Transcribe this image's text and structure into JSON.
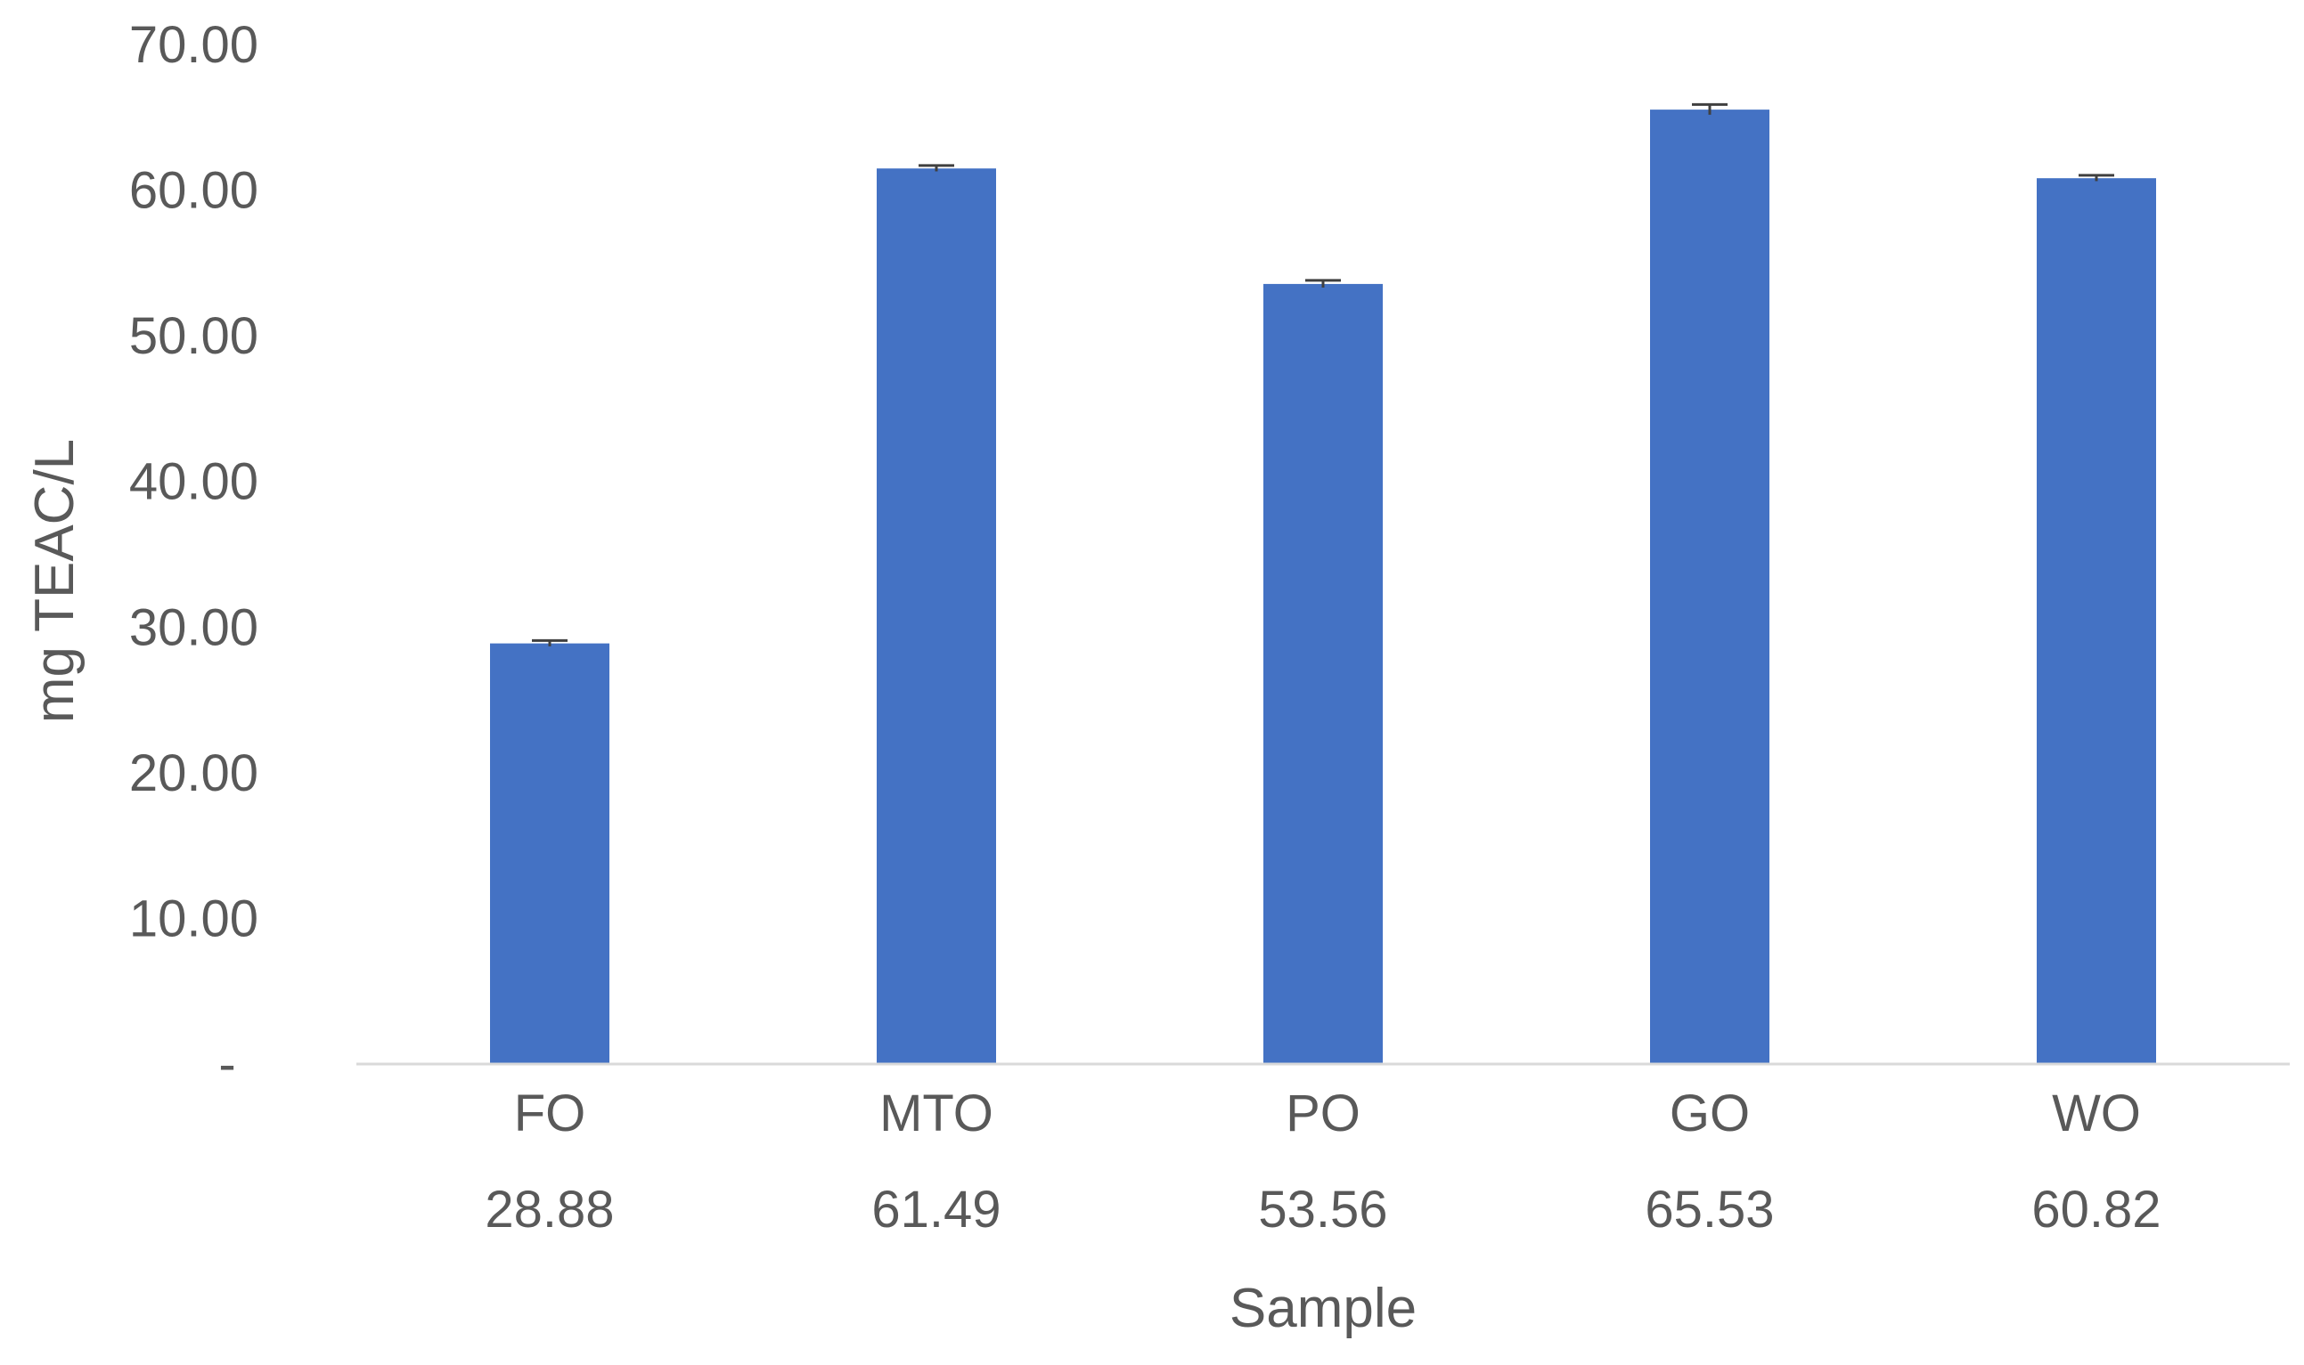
{
  "chart_data": {
    "type": "bar",
    "categories": [
      "FO",
      "MTO",
      "PO",
      "GO",
      "WO"
    ],
    "values": [
      28.88,
      61.49,
      53.56,
      65.53,
      60.82
    ],
    "table_values": [
      "28.88",
      "61.49",
      "53.56",
      "65.53",
      "60.82"
    ],
    "error": [
      0.2,
      0.2,
      0.25,
      0.35,
      0.2
    ],
    "title": "",
    "xlabel": "Sample",
    "ylabel": "mg TEAC/L",
    "ylim": [
      0,
      70
    ],
    "yticks": [
      {
        "value": 0,
        "label": "-"
      },
      {
        "value": 10,
        "label": "10.00"
      },
      {
        "value": 20,
        "label": "20.00"
      },
      {
        "value": 30,
        "label": "30.00"
      },
      {
        "value": 40,
        "label": "40.00"
      },
      {
        "value": 50,
        "label": "50.00"
      },
      {
        "value": 60,
        "label": "60.00"
      },
      {
        "value": 70,
        "label": "70.00"
      }
    ],
    "grid": false,
    "legend": "none",
    "colors": {
      "bar": "#4472C4",
      "axis": "#D9D9D9",
      "text": "#595959",
      "error_bar": "#404040"
    }
  }
}
